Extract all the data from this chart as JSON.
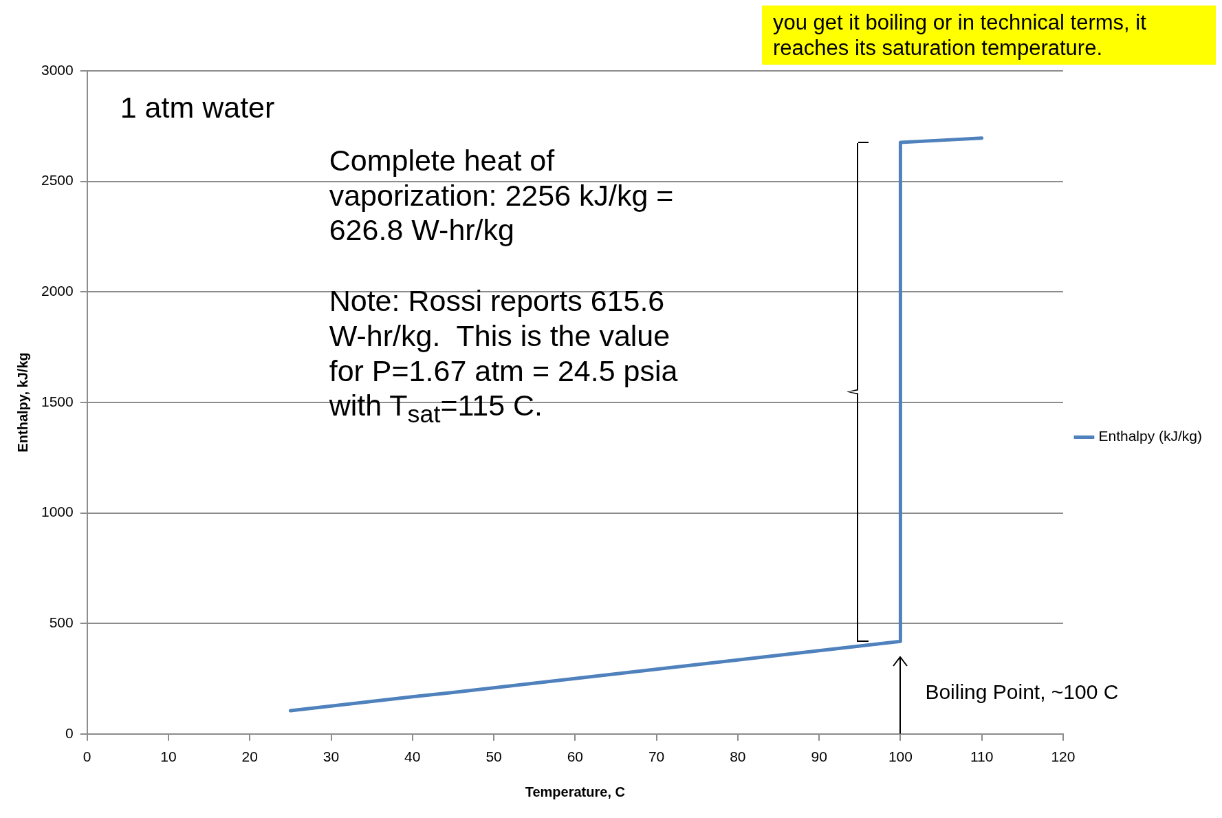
{
  "chart_data": {
    "type": "line",
    "xlabel": "Temperature, C",
    "ylabel": "Enthalpy, kJ/kg",
    "xlim": [
      0,
      120
    ],
    "xticks": [
      0,
      10,
      20,
      30,
      40,
      50,
      60,
      70,
      80,
      90,
      100,
      110,
      120
    ],
    "ylim": [
      0,
      3000
    ],
    "yticks": [
      0,
      500,
      1000,
      1500,
      2000,
      2500,
      3000
    ],
    "grid": "y",
    "legend": "right",
    "marker": "none",
    "line_style": "solid",
    "series": [
      {
        "name": "Enthalpy (kJ/kg)",
        "color": "#4f81bd",
        "x": [
          25,
          30,
          35,
          40,
          45,
          50,
          55,
          60,
          65,
          70,
          75,
          80,
          85,
          90,
          95,
          100,
          100,
          105,
          110
        ],
        "values": [
          105,
          126,
          147,
          168,
          188,
          209,
          230,
          251,
          272,
          293,
          314,
          335,
          356,
          377,
          398,
          419,
          2676,
          2686,
          2696
        ]
      }
    ],
    "annotations": [
      "1 atm water",
      "Complete heat of vaporization: 2256 kJ/kg = 626.8 W-hr/kg",
      "Note: Rossi reports 615.6 W-hr/kg.  This is the value for P=1.67 atm = 24.5 psia with T$_{sat}$=115 C.",
      {
        "text": "Boiling Point, ~100 C",
        "x": 100,
        "y": 419
      },
      "you get it boiling or in technical terms, it reaches its saturation temperature."
    ]
  }
}
